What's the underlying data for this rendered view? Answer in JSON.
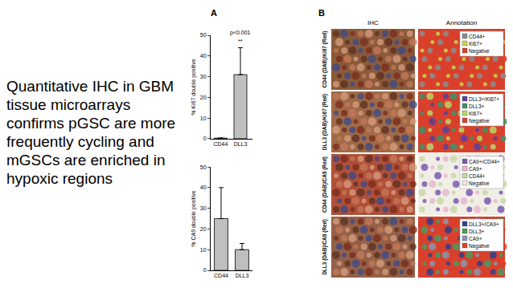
{
  "text": {
    "lines": [
      "Quantitative IHC in GBM",
      "tissue microarrays",
      "confirms pGSC are more",
      "frequently cycling and",
      "mGSCs are enriched in",
      "hypoxic regions"
    ]
  },
  "panel_labels": [
    "A",
    "B"
  ],
  "chart_data": [
    {
      "type": "bar",
      "categories": [
        "CD44",
        "DLL3"
      ],
      "values": [
        0.3,
        31
      ],
      "error": [
        0,
        13
      ],
      "color": "#bfbfbf",
      "y_label": "% Ki67 double positive",
      "ylim": [
        0,
        50
      ],
      "yticks": [
        0,
        10,
        20,
        30,
        40,
        50
      ],
      "grid": false,
      "annotation": {
        "category": "DLL3",
        "texts": [
          "p<0.001",
          "**"
        ]
      }
    },
    {
      "type": "bar",
      "categories": [
        "CD44",
        "DLL3"
      ],
      "values": [
        25,
        10
      ],
      "error": [
        15,
        3
      ],
      "color": "#bfbfbf",
      "y_label": "% CA9 double positive",
      "ylim": [
        0,
        50
      ],
      "yticks": [
        0,
        10,
        20,
        30,
        40,
        50
      ],
      "grid": false
    }
  ],
  "panel_b": {
    "columns": [
      "IHC",
      "Annotation"
    ],
    "rows": [
      {
        "label": "CD44 (DAB)/Ki67 (Red)",
        "legend": [
          {
            "name": "CD44+",
            "color": "#8c8c8c"
          },
          {
            "name": "Ki67+",
            "color": "#c8d44a"
          },
          {
            "name": "Negative",
            "color": "#d9402b"
          }
        ]
      },
      {
        "label": "DLL3 (DAB)/Ki67 (Red)",
        "legend": [
          {
            "name": "DLL3+/Ki67+",
            "color": "#5a3f9a"
          },
          {
            "name": "DLL3+",
            "color": "#3f8f6a"
          },
          {
            "name": "Ki67+",
            "color": "#b9d46a"
          },
          {
            "name": "Negative",
            "color": "#d9402b"
          }
        ]
      },
      {
        "label": "CD44 (DAB)/CA9 (Red)",
        "legend": [
          {
            "name": "CA9+/CD44+",
            "color": "#7a5bb0"
          },
          {
            "name": "CA9+",
            "color": "#e9b7d0"
          },
          {
            "name": "CD44+",
            "color": "#c9d7a8"
          },
          {
            "name": "Negative",
            "color": "#f0eee6"
          }
        ]
      },
      {
        "label": "DLL3 (DAB)/CA9 (Red)",
        "legend": [
          {
            "name": "DLL3+/CA9+",
            "color": "#2f3f8f"
          },
          {
            "name": "DLL3+",
            "color": "#4a9a5a"
          },
          {
            "name": "CA9+",
            "color": "#8a96b0"
          },
          {
            "name": "Negative",
            "color": "#d9402b"
          }
        ]
      }
    ]
  }
}
